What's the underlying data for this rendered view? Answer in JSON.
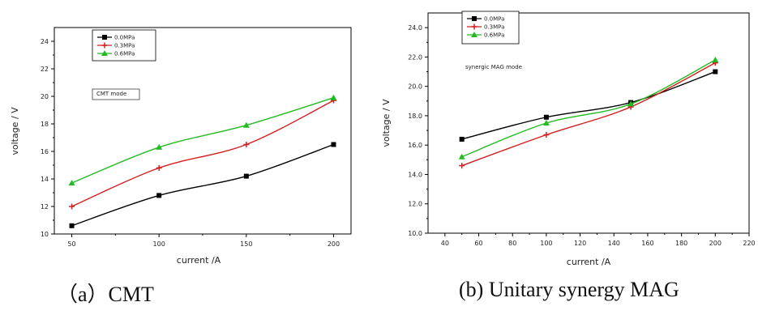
{
  "captions": {
    "a": "（a）CMT",
    "b": "(b) Unitary synergy MAG"
  },
  "chart_data": [
    {
      "type": "line",
      "xlabel": "current /A",
      "ylabel": "voltage / V",
      "xlim": [
        40,
        210
      ],
      "ylim": [
        10,
        25
      ],
      "xticks": [
        50,
        100,
        150,
        200
      ],
      "yticks": [
        10,
        12,
        14,
        16,
        18,
        20,
        22,
        24
      ],
      "annotation": "CMT mode",
      "legend_position": "top-left",
      "x": [
        50,
        100,
        150,
        200
      ],
      "series": [
        {
          "name": "0.0MPa",
          "values": [
            10.6,
            12.8,
            14.2,
            16.5
          ],
          "color": "#000000",
          "marker": "square"
        },
        {
          "name": "0.3MPa",
          "values": [
            12.0,
            14.8,
            16.5,
            19.7
          ],
          "color": "#d21f1f",
          "marker": "cross"
        },
        {
          "name": "0.6MPa",
          "values": [
            13.7,
            16.3,
            17.9,
            19.9
          ],
          "color": "#22bb22",
          "marker": "triangle"
        }
      ]
    },
    {
      "type": "line",
      "xlabel": "current /A",
      "ylabel": "voltage / V",
      "xlim": [
        30,
        220
      ],
      "ylim": [
        10,
        25
      ],
      "xticks": [
        40,
        60,
        80,
        100,
        120,
        140,
        160,
        180,
        200,
        220
      ],
      "yticks": [
        10.0,
        12.0,
        14.0,
        16.0,
        18.0,
        20.0,
        22.0,
        24.0
      ],
      "annotation": "synergic MAG mode",
      "legend_position": "top-left",
      "x": [
        50,
        100,
        150,
        200
      ],
      "series": [
        {
          "name": "0.0MPa",
          "values": [
            16.4,
            17.9,
            18.9,
            21.0
          ],
          "color": "#000000",
          "marker": "square"
        },
        {
          "name": "0.3MPa",
          "values": [
            14.6,
            16.7,
            18.6,
            21.6
          ],
          "color": "#d21f1f",
          "marker": "cross"
        },
        {
          "name": "0.6MPa",
          "values": [
            15.2,
            17.5,
            18.8,
            21.8
          ],
          "color": "#22bb22",
          "marker": "triangle"
        }
      ]
    }
  ]
}
